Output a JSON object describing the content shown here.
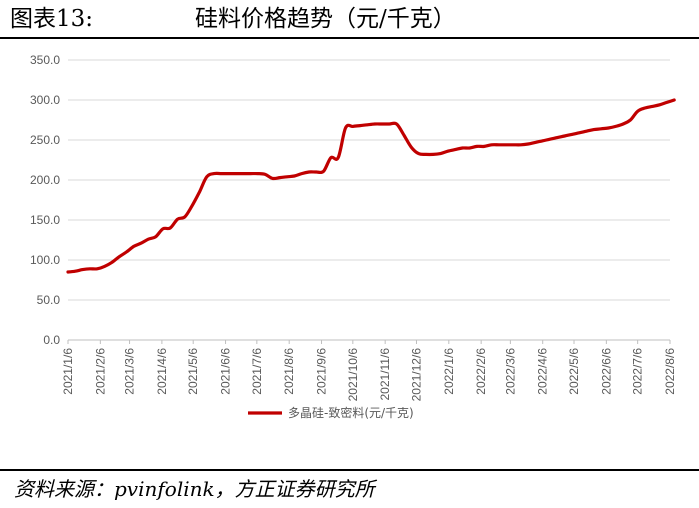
{
  "figure": {
    "label": "图表13:",
    "title": "硅料价格趋势（元/千克）",
    "source": "资料来源：pvinfolink，方正证券研究所"
  },
  "chart_data": {
    "type": "line",
    "title": "",
    "xlabel": "",
    "ylabel": "",
    "ylim": [
      0,
      350
    ],
    "yticks": [
      "0.0",
      "50.0",
      "100.0",
      "150.0",
      "200.0",
      "250.0",
      "300.0",
      "350.0"
    ],
    "x_ticks": [
      "2021/1/6",
      "2021/2/6",
      "2021/3/6",
      "2021/4/6",
      "2021/5/6",
      "2021/6/6",
      "2021/7/6",
      "2021/8/6",
      "2021/9/6",
      "2021/10/6",
      "2021/11/6",
      "2021/12/6",
      "2022/1/6",
      "2022/2/6",
      "2022/3/6",
      "2022/4/6",
      "2022/5/6",
      "2022/6/6",
      "2022/7/6",
      "2022/8/6"
    ],
    "grid": "horizontal",
    "legend": "bottom",
    "color": "#c00000",
    "series": [
      {
        "name": "多晶硅-致密料(元/千克)",
        "x": [
          "2021/1/6",
          "2021/1/13",
          "2021/1/20",
          "2021/1/27",
          "2021/2/3",
          "2021/2/10",
          "2021/2/17",
          "2021/2/24",
          "2021/3/3",
          "2021/3/10",
          "2021/3/17",
          "2021/3/24",
          "2021/3/31",
          "2021/4/7",
          "2021/4/14",
          "2021/4/21",
          "2021/4/28",
          "2021/5/5",
          "2021/5/12",
          "2021/5/19",
          "2021/5/26",
          "2021/6/2",
          "2021/6/9",
          "2021/6/16",
          "2021/6/23",
          "2021/6/30",
          "2021/7/7",
          "2021/7/14",
          "2021/7/21",
          "2021/7/28",
          "2021/8/4",
          "2021/8/11",
          "2021/8/18",
          "2021/8/25",
          "2021/9/1",
          "2021/9/8",
          "2021/9/15",
          "2021/9/22",
          "2021/9/29",
          "2021/10/6",
          "2021/10/13",
          "2021/10/20",
          "2021/10/27",
          "2021/11/3",
          "2021/11/10",
          "2021/11/17",
          "2021/11/24",
          "2021/12/1",
          "2021/12/8",
          "2021/12/15",
          "2021/12/22",
          "2021/12/29",
          "2022/1/5",
          "2022/1/12",
          "2022/1/19",
          "2022/1/26",
          "2022/2/2",
          "2022/2/9",
          "2022/2/16",
          "2022/2/23",
          "2022/3/2",
          "2022/3/9",
          "2022/3/16",
          "2022/3/23",
          "2022/3/30",
          "2022/4/6",
          "2022/4/13",
          "2022/4/20",
          "2022/4/27",
          "2022/5/4",
          "2022/5/11",
          "2022/5/18",
          "2022/5/25",
          "2022/6/1",
          "2022/6/8",
          "2022/6/15",
          "2022/6/22",
          "2022/6/29",
          "2022/7/6",
          "2022/7/13",
          "2022/7/20",
          "2022/7/27",
          "2022/8/3",
          "2022/8/10"
        ],
        "values": [
          85,
          86,
          88,
          89,
          89,
          92,
          97,
          104,
          110,
          117,
          121,
          126,
          129,
          139,
          140,
          151,
          154,
          168,
          185,
          204,
          208,
          208,
          208,
          208,
          208,
          208,
          208,
          207,
          202,
          203,
          204,
          205,
          208,
          210,
          210,
          211,
          228,
          228,
          265,
          267,
          268,
          269,
          270,
          270,
          270,
          270,
          256,
          241,
          233,
          232,
          232,
          233,
          236,
          238,
          240,
          240,
          242,
          242,
          244,
          244,
          244,
          244,
          244,
          245,
          247,
          249,
          251,
          253,
          255,
          257,
          259,
          261,
          263,
          264,
          265,
          267,
          270,
          275,
          286,
          290,
          292,
          294,
          297,
          300
        ]
      }
    ]
  }
}
